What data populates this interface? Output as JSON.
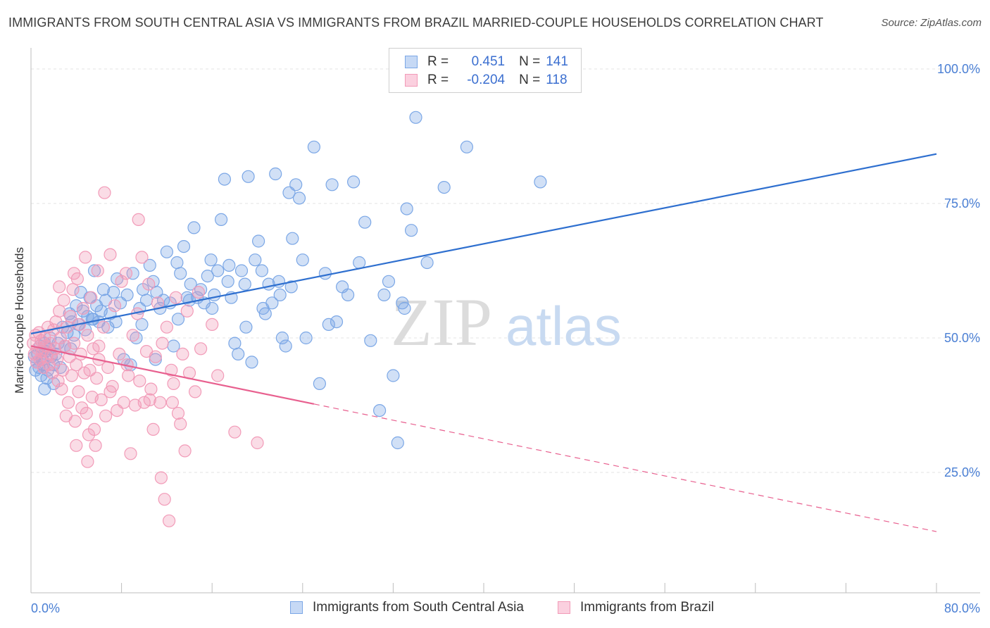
{
  "title": "IMMIGRANTS FROM SOUTH CENTRAL ASIA VS IMMIGRANTS FROM BRAZIL MARRIED-COUPLE HOUSEHOLDS CORRELATION CHART",
  "source": "Source: ZipAtlas.com",
  "watermark": {
    "zip": "ZIP",
    "atlas": "atlas"
  },
  "legend": {
    "r_label": "R =",
    "n_label": "N =",
    "series": [
      {
        "r": "0.451",
        "n": "141"
      },
      {
        "r": "-0.204",
        "n": "118"
      }
    ]
  },
  "bottom_legend": [
    "Immigrants from South Central Asia",
    "Immigrants from Brazil"
  ],
  "chart_data": {
    "type": "scatter",
    "title": "IMMIGRANTS FROM SOUTH CENTRAL ASIA VS IMMIGRANTS FROM BRAZIL MARRIED-COUPLE HOUSEHOLDS CORRELATION CHART",
    "ylabel": "Married-couple Households",
    "xlabel": "",
    "xlim": [
      0,
      80
    ],
    "ylim": [
      0,
      105
    ],
    "x_tick_labels": [
      "0.0%",
      "80.0%"
    ],
    "y_tick_labels": [
      "100.0%",
      "75.0%",
      "50.0%",
      "25.0%"
    ],
    "y_ticks": [
      100,
      75,
      50,
      25
    ],
    "grid": true,
    "legend_position": "top-center",
    "series": [
      {
        "name": "Immigrants from South Central Asia",
        "color": "#7ba7e6",
        "line_color": "#2e6fcf",
        "trend": {
          "x0": 0,
          "y0": 50.8,
          "x1": 80,
          "y1": 84.2
        },
        "points": [
          [
            0.3,
            46.5
          ],
          [
            0.4,
            44.0
          ],
          [
            0.5,
            45.5
          ],
          [
            0.6,
            47.0
          ],
          [
            0.7,
            44.5
          ],
          [
            0.8,
            48.5
          ],
          [
            0.9,
            43.0
          ],
          [
            1.0,
            46.0
          ],
          [
            1.1,
            45.0
          ],
          [
            1.2,
            49.0
          ],
          [
            1.3,
            47.5
          ],
          [
            1.4,
            42.5
          ],
          [
            1.5,
            44.0
          ],
          [
            1.6,
            48.0
          ],
          [
            1.7,
            50.0
          ],
          [
            1.8,
            46.5
          ],
          [
            2.0,
            45.0
          ],
          [
            2.2,
            47.0
          ],
          [
            2.4,
            49.0
          ],
          [
            2.6,
            44.5
          ],
          [
            2.8,
            52.0
          ],
          [
            3.0,
            48.5
          ],
          [
            3.2,
            51.0
          ],
          [
            3.4,
            54.5
          ],
          [
            3.6,
            53.0
          ],
          [
            3.8,
            50.5
          ],
          [
            4.0,
            56.0
          ],
          [
            4.2,
            52.5
          ],
          [
            4.4,
            58.5
          ],
          [
            4.6,
            55.0
          ],
          [
            4.8,
            51.5
          ],
          [
            5.0,
            54.0
          ],
          [
            5.2,
            57.5
          ],
          [
            5.4,
            53.5
          ],
          [
            5.6,
            62.5
          ],
          [
            5.8,
            56.0
          ],
          [
            6.0,
            53.0
          ],
          [
            6.2,
            55.0
          ],
          [
            6.4,
            59.0
          ],
          [
            6.6,
            57.0
          ],
          [
            6.8,
            52.0
          ],
          [
            7.0,
            54.5
          ],
          [
            7.3,
            58.5
          ],
          [
            7.6,
            61.0
          ],
          [
            7.9,
            56.5
          ],
          [
            8.2,
            46.0
          ],
          [
            8.5,
            58.0
          ],
          [
            8.8,
            45.0
          ],
          [
            9.0,
            62.0
          ],
          [
            9.3,
            50.0
          ],
          [
            9.6,
            55.5
          ],
          [
            9.9,
            59.0
          ],
          [
            10.2,
            57.0
          ],
          [
            10.5,
            63.5
          ],
          [
            10.8,
            60.5
          ],
          [
            11.1,
            58.5
          ],
          [
            11.4,
            55.5
          ],
          [
            11.7,
            57.0
          ],
          [
            12.0,
            66.0
          ],
          [
            12.3,
            56.5
          ],
          [
            12.6,
            48.5
          ],
          [
            12.9,
            64.0
          ],
          [
            13.2,
            62.0
          ],
          [
            13.5,
            67.0
          ],
          [
            13.8,
            57.5
          ],
          [
            14.1,
            60.0
          ],
          [
            14.4,
            70.5
          ],
          [
            14.7,
            57.5
          ],
          [
            15.0,
            59.0
          ],
          [
            15.3,
            56.5
          ],
          [
            15.6,
            61.5
          ],
          [
            15.9,
            64.5
          ],
          [
            16.2,
            58.0
          ],
          [
            16.5,
            62.5
          ],
          [
            16.8,
            72.0
          ],
          [
            17.1,
            79.5
          ],
          [
            17.4,
            60.5
          ],
          [
            17.7,
            57.5
          ],
          [
            18.0,
            49.0
          ],
          [
            18.3,
            47.0
          ],
          [
            18.6,
            62.5
          ],
          [
            18.9,
            60.0
          ],
          [
            19.2,
            80.0
          ],
          [
            19.5,
            45.5
          ],
          [
            19.8,
            64.5
          ],
          [
            20.1,
            68.0
          ],
          [
            20.4,
            62.5
          ],
          [
            20.7,
            54.5
          ],
          [
            21.0,
            60.0
          ],
          [
            21.3,
            56.5
          ],
          [
            21.6,
            80.5
          ],
          [
            21.9,
            60.5
          ],
          [
            22.2,
            50.0
          ],
          [
            22.5,
            48.5
          ],
          [
            22.8,
            77.0
          ],
          [
            23.1,
            68.5
          ],
          [
            23.4,
            78.5
          ],
          [
            23.7,
            76.0
          ],
          [
            24.0,
            64.5
          ],
          [
            24.3,
            50.0
          ],
          [
            25.0,
            85.5
          ],
          [
            25.5,
            41.5
          ],
          [
            26.0,
            62.0
          ],
          [
            26.3,
            52.5
          ],
          [
            26.6,
            78.5
          ],
          [
            27.0,
            53.0
          ],
          [
            27.5,
            59.5
          ],
          [
            28.0,
            58.0
          ],
          [
            28.5,
            79.0
          ],
          [
            29.0,
            64.0
          ],
          [
            29.5,
            71.5
          ],
          [
            30.0,
            49.5
          ],
          [
            30.8,
            36.5
          ],
          [
            31.2,
            58.0
          ],
          [
            31.6,
            60.5
          ],
          [
            32.0,
            43.0
          ],
          [
            32.4,
            30.5
          ],
          [
            32.8,
            56.5
          ],
          [
            33.0,
            55.5
          ],
          [
            33.2,
            74.0
          ],
          [
            33.6,
            70.0
          ],
          [
            34.0,
            91.0
          ],
          [
            35.0,
            64.0
          ],
          [
            36.5,
            78.0
          ],
          [
            38.5,
            85.5
          ],
          [
            45.0,
            79.0
          ],
          [
            2.0,
            41.5
          ],
          [
            1.2,
            40.5
          ],
          [
            3.5,
            48.0
          ],
          [
            5.5,
            53.5
          ],
          [
            7.5,
            53.0
          ],
          [
            9.8,
            52.5
          ],
          [
            11.0,
            46.0
          ],
          [
            13.0,
            53.5
          ],
          [
            14.0,
            57.0
          ],
          [
            16.0,
            55.5
          ],
          [
            17.5,
            63.5
          ],
          [
            19.0,
            52.0
          ],
          [
            20.5,
            55.5
          ],
          [
            22.0,
            58.0
          ],
          [
            23.0,
            59.5
          ]
        ]
      },
      {
        "name": "Immigrants from Brazil",
        "color": "#f29bb8",
        "line_color": "#e8608f",
        "trend": {
          "x0": 0,
          "y0": 48.5,
          "x1": 80,
          "y1": 14.0,
          "solid_until_x": 25
        },
        "points": [
          [
            0.2,
            49.0
          ],
          [
            0.3,
            47.0
          ],
          [
            0.4,
            50.5
          ],
          [
            0.5,
            45.5
          ],
          [
            0.6,
            48.0
          ],
          [
            0.7,
            51.0
          ],
          [
            0.8,
            46.0
          ],
          [
            0.9,
            49.5
          ],
          [
            1.0,
            47.5
          ],
          [
            1.1,
            44.5
          ],
          [
            1.2,
            50.0
          ],
          [
            1.3,
            48.5
          ],
          [
            1.4,
            46.5
          ],
          [
            1.5,
            52.0
          ],
          [
            1.6,
            45.0
          ],
          [
            1.7,
            49.0
          ],
          [
            1.8,
            47.0
          ],
          [
            1.9,
            43.5
          ],
          [
            2.0,
            51.5
          ],
          [
            2.1,
            48.0
          ],
          [
            2.2,
            53.0
          ],
          [
            2.3,
            46.0
          ],
          [
            2.4,
            42.0
          ],
          [
            2.5,
            55.0
          ],
          [
            2.6,
            50.0
          ],
          [
            2.7,
            40.5
          ],
          [
            2.8,
            44.0
          ],
          [
            2.9,
            57.0
          ],
          [
            3.0,
            48.5
          ],
          [
            3.1,
            35.5
          ],
          [
            3.2,
            52.0
          ],
          [
            3.3,
            38.0
          ],
          [
            3.4,
            46.5
          ],
          [
            3.5,
            54.0
          ],
          [
            3.6,
            43.0
          ],
          [
            3.7,
            59.0
          ],
          [
            3.8,
            49.0
          ],
          [
            3.9,
            34.5
          ],
          [
            4.0,
            45.0
          ],
          [
            4.1,
            61.0
          ],
          [
            4.2,
            40.0
          ],
          [
            4.3,
            52.5
          ],
          [
            4.4,
            47.0
          ],
          [
            4.5,
            37.0
          ],
          [
            4.6,
            55.5
          ],
          [
            4.7,
            43.5
          ],
          [
            4.8,
            65.0
          ],
          [
            4.9,
            36.0
          ],
          [
            5.0,
            50.5
          ],
          [
            5.1,
            32.0
          ],
          [
            5.2,
            44.0
          ],
          [
            5.3,
            57.5
          ],
          [
            5.4,
            39.0
          ],
          [
            5.5,
            48.0
          ],
          [
            5.6,
            33.0
          ],
          [
            5.7,
            30.0
          ],
          [
            5.8,
            42.5
          ],
          [
            5.9,
            62.5
          ],
          [
            6.0,
            46.0
          ],
          [
            6.2,
            38.5
          ],
          [
            6.4,
            52.0
          ],
          [
            6.6,
            35.5
          ],
          [
            6.8,
            44.5
          ],
          [
            7.0,
            65.5
          ],
          [
            7.2,
            41.0
          ],
          [
            7.4,
            56.0
          ],
          [
            7.6,
            36.5
          ],
          [
            7.8,
            47.0
          ],
          [
            8.0,
            60.5
          ],
          [
            8.2,
            38.0
          ],
          [
            8.4,
            62.0
          ],
          [
            8.6,
            43.0
          ],
          [
            8.8,
            28.5
          ],
          [
            9.0,
            50.5
          ],
          [
            9.2,
            37.5
          ],
          [
            9.4,
            54.5
          ],
          [
            9.6,
            42.0
          ],
          [
            9.8,
            65.0
          ],
          [
            10.0,
            38.0
          ],
          [
            10.2,
            47.5
          ],
          [
            10.4,
            60.0
          ],
          [
            10.6,
            40.5
          ],
          [
            10.8,
            33.0
          ],
          [
            11.0,
            46.5
          ],
          [
            11.2,
            56.5
          ],
          [
            11.4,
            38.0
          ],
          [
            11.6,
            49.0
          ],
          [
            11.8,
            20.0
          ],
          [
            12.0,
            52.0
          ],
          [
            12.2,
            16.0
          ],
          [
            12.4,
            44.0
          ],
          [
            12.6,
            41.5
          ],
          [
            12.8,
            57.5
          ],
          [
            13.0,
            36.0
          ],
          [
            13.2,
            34.0
          ],
          [
            13.4,
            47.0
          ],
          [
            13.6,
            29.0
          ],
          [
            13.8,
            55.0
          ],
          [
            14.0,
            43.5
          ],
          [
            14.5,
            40.0
          ],
          [
            15.0,
            48.0
          ],
          [
            16.0,
            52.5
          ],
          [
            16.5,
            43.0
          ],
          [
            18.0,
            32.5
          ],
          [
            20.0,
            30.5
          ],
          [
            9.5,
            72.0
          ],
          [
            6.5,
            77.0
          ],
          [
            2.5,
            59.5
          ],
          [
            3.8,
            62.0
          ],
          [
            7.0,
            40.0
          ],
          [
            8.5,
            45.0
          ],
          [
            10.5,
            38.5
          ],
          [
            12.5,
            38.0
          ],
          [
            14.8,
            58.5
          ],
          [
            5.0,
            27.0
          ],
          [
            11.5,
            24.0
          ],
          [
            4.0,
            30.0
          ],
          [
            6.0,
            48.5
          ]
        ]
      }
    ]
  }
}
